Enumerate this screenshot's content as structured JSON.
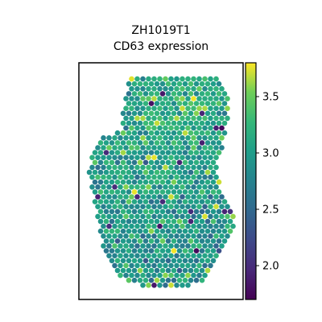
{
  "chart_data": {
    "type": "scatter",
    "title_line1": "ZH1019T1",
    "title_line2": "CD63 expression",
    "xlabel": "",
    "ylabel": "",
    "axis_ticks_visible": false,
    "grid": false,
    "legend": "none",
    "colorbar": {
      "colormap": "viridis",
      "range": [
        1.7,
        3.8
      ],
      "ticks": [
        2.0,
        2.5,
        3.0,
        3.5
      ],
      "tick_labels": [
        "2.0",
        "2.5",
        "3.0",
        "3.5"
      ]
    },
    "value_summary": {
      "typical_range": [
        2.5,
        3.3
      ],
      "min": 1.7,
      "max": 3.8
    }
  }
}
